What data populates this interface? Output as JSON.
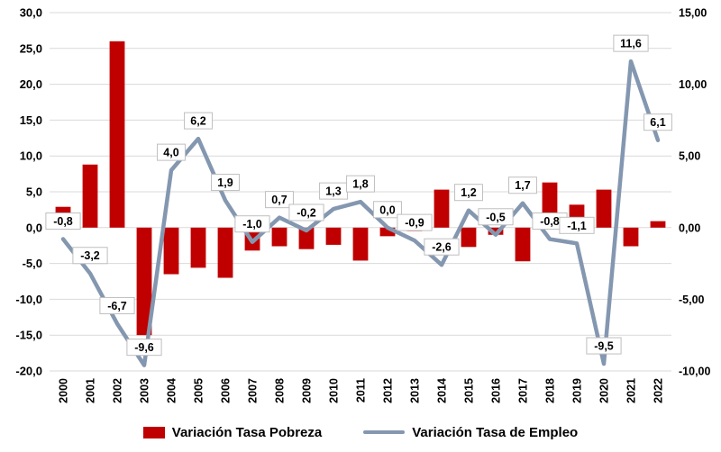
{
  "chart_data": {
    "type": "bar",
    "subtype": "combo-bar-line",
    "title": "",
    "categories": [
      "2000",
      "2001",
      "2002",
      "2003",
      "2004",
      "2005",
      "2006",
      "2007",
      "2008",
      "2009",
      "2010",
      "2011",
      "2012",
      "2013",
      "2014",
      "2015",
      "2016",
      "2017",
      "2018",
      "2019",
      "2020",
      "2021",
      "2022"
    ],
    "series": [
      {
        "name": "Variación Tasa Pobreza",
        "type": "bar",
        "axis": "left",
        "color": "#C00000",
        "values": [
          2.9,
          8.8,
          26.0,
          -15.0,
          -6.5,
          -5.6,
          -7.0,
          -3.2,
          -2.6,
          -3.0,
          -2.4,
          -4.6,
          -1.2,
          -0.5,
          5.3,
          -2.7,
          -1.0,
          -4.7,
          6.3,
          3.2,
          5.3,
          -2.6,
          0.9
        ]
      },
      {
        "name": "Variación Tasa de Empleo",
        "type": "line",
        "axis": "right",
        "color": "#8497B0",
        "values": [
          -0.8,
          -3.2,
          -6.7,
          -9.6,
          4.0,
          6.2,
          1.9,
          -1.0,
          0.7,
          -0.2,
          1.3,
          1.8,
          0.0,
          -0.9,
          -2.6,
          1.2,
          -0.5,
          1.7,
          -0.8,
          -1.1,
          -9.5,
          11.6,
          6.1
        ],
        "point_labels": [
          "-0,8",
          "-3,2",
          "-6,7",
          "-9,6",
          "4,0",
          "6,2",
          "1,9",
          "-1,0",
          "0,7",
          "-0,2",
          "1,3",
          "1,8",
          "0,0",
          "-0,9",
          "-2,6",
          "1,2",
          "-0,5",
          "1,7",
          "-0,8",
          "-1,1",
          "-9,5",
          "11,6",
          "6,1"
        ]
      }
    ],
    "left_axis": {
      "min": -20,
      "max": 30,
      "tick_values": [
        30,
        25,
        20,
        15,
        10,
        5,
        0,
        -5,
        -10,
        -15,
        -20
      ],
      "tick_labels": [
        "30,0",
        "25,0",
        "20,0",
        "15,0",
        "10,0",
        "5,0",
        "0,0",
        "-5,0",
        "-10,0",
        "-15,0",
        "-20,0"
      ]
    },
    "right_axis": {
      "min": -10,
      "max": 15,
      "tick_values": [
        15,
        10,
        5,
        0,
        -5,
        -10
      ],
      "tick_labels": [
        "15,00",
        "10,00",
        "5,00",
        "0,00",
        "-5,00",
        "-10,00"
      ]
    },
    "grid": true,
    "legend_position": "bottom"
  },
  "colors": {
    "grid": "#D9D9D9",
    "label_box_border": "#BFBFBF",
    "label_box_fill": "#FFFFFF",
    "text": "#000000",
    "background": "#FFFFFF"
  }
}
